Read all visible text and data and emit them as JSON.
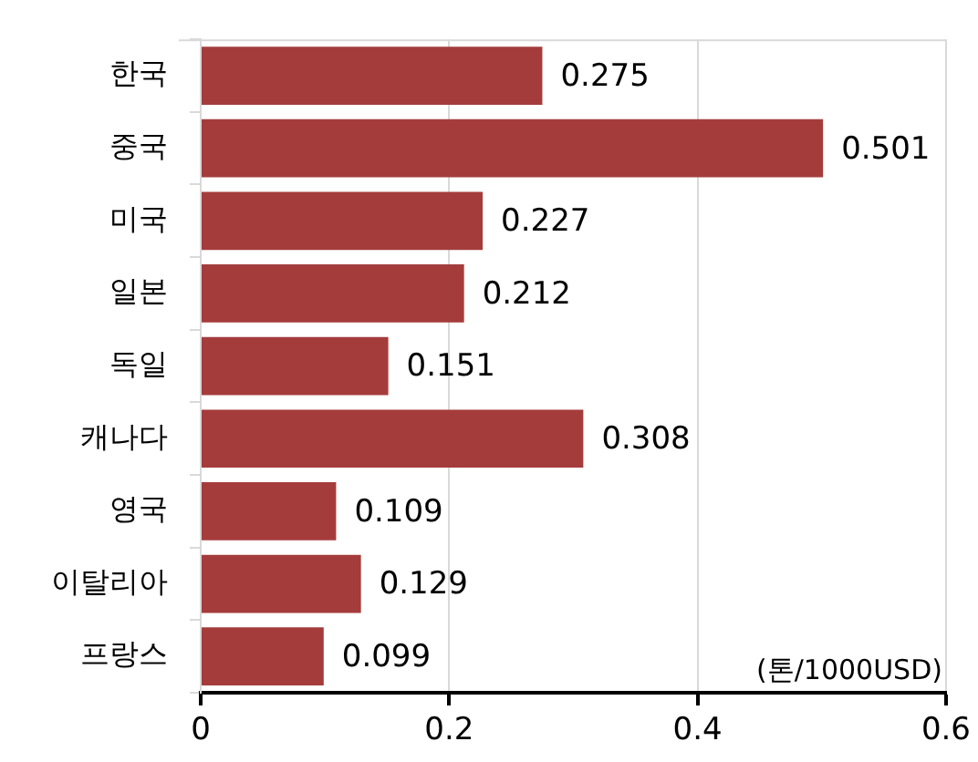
{
  "chart_data": {
    "type": "bar",
    "orientation": "horizontal",
    "categories": [
      "한국",
      "중국",
      "미국",
      "일본",
      "독일",
      "캐나다",
      "영국",
      "이탈리아",
      "프랑스"
    ],
    "values": [
      0.275,
      0.501,
      0.227,
      0.212,
      0.151,
      0.308,
      0.109,
      0.129,
      0.099
    ],
    "color": "#a53c3c",
    "xlim": [
      0,
      0.6
    ],
    "xticks": [
      0,
      0.2,
      0.4,
      0.6
    ],
    "xlabel": "(톤/1000USD)",
    "data_labels": true,
    "grid": "x"
  }
}
